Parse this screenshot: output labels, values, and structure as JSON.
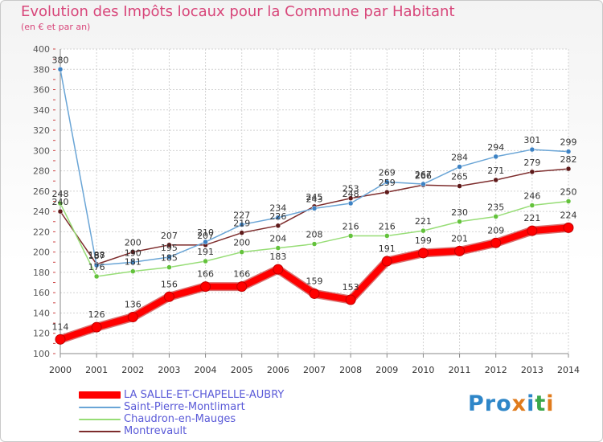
{
  "header": {
    "title": "Evolution des Impôts locaux pour la Commune par Habitant",
    "subtitle": "(en € et par an)"
  },
  "logo": {
    "parts": [
      "Pro",
      "x",
      "i",
      "t",
      "i"
    ],
    "colors": [
      "#2e86c8",
      "#e07b1c",
      "#2e86c8",
      "#3aa74b",
      "#e07b1c"
    ]
  },
  "chart_data": {
    "type": "line",
    "title": "Evolution des Impôts locaux pour la Commune par Habitant",
    "subtitle": "(en € et par an)",
    "xlabel": "",
    "ylabel": "",
    "x": [
      "2000",
      "2001",
      "2002",
      "2003",
      "2004",
      "2005",
      "2006",
      "2007",
      "2008",
      "2009",
      "2010",
      "2011",
      "2012",
      "2013",
      "2014"
    ],
    "ylim": [
      100,
      400
    ],
    "yticks": [
      100,
      120,
      140,
      160,
      180,
      200,
      220,
      240,
      260,
      280,
      300,
      320,
      340,
      360,
      380,
      400
    ],
    "grid": true,
    "legend_position": "bottom-left",
    "series": [
      {
        "name": "LA SALLE-ET-CHAPELLE-AUBRY",
        "color": "#ff0000",
        "emphasis": true,
        "values": [
          114,
          126,
          136,
          156,
          166,
          166,
          183,
          159,
          153,
          191,
          199,
          201,
          209,
          221,
          224
        ],
        "labels": [
          "114",
          "126",
          "136",
          "156",
          "166",
          "166",
          "183",
          "159",
          "153",
          "191",
          "199",
          "201",
          "209",
          "221",
          "224"
        ]
      },
      {
        "name": "Saint-Pierre-Montlimart",
        "color": "#6aa5d6",
        "marker": "#3d82c4",
        "values": [
          380,
          187,
          190,
          195,
          210,
          227,
          234,
          243,
          248,
          269,
          267,
          284,
          294,
          301,
          299
        ],
        "labels": [
          "380",
          "187",
          "190",
          "195",
          "210",
          "227",
          "234",
          "243",
          "248",
          "269",
          "267",
          "284",
          "294",
          "301",
          "299"
        ]
      },
      {
        "name": "Chaudron-en-Mauges",
        "color": "#97dd76",
        "marker": "#63c23b",
        "values": [
          248,
          176,
          181,
          185,
          191,
          200,
          204,
          208,
          216,
          216,
          221,
          230,
          235,
          246,
          250
        ],
        "labels": [
          "248",
          "176",
          "181",
          "185",
          "191",
          "200",
          "204",
          "208",
          "216",
          "216",
          "221",
          "230",
          "235",
          "246",
          "250"
        ]
      },
      {
        "name": "Montrevault",
        "color": "#7d2c2c",
        "marker": "#5e1a1a",
        "values": [
          240,
          188,
          200,
          207,
          207,
          219,
          226,
          245,
          253,
          259,
          266,
          265,
          271,
          279,
          282
        ],
        "labels": [
          "240",
          "188",
          "200",
          "207",
          "207",
          "219",
          "226",
          "245",
          "253",
          "259",
          "266",
          "265",
          "271",
          "279",
          "282"
        ]
      }
    ]
  }
}
